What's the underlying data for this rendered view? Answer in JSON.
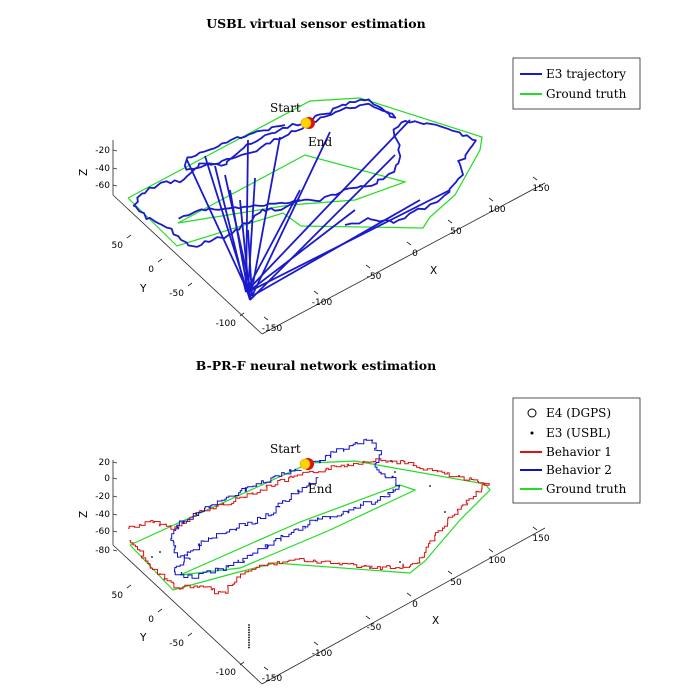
{
  "chart_data": [
    {
      "type": "line3d",
      "title": "USBL virtual sensor estimation",
      "xlabel": "X",
      "ylabel": "Y",
      "zlabel": "Z",
      "x_ticks": [
        "-150",
        "-100",
        "-50",
        "0",
        "50",
        "100",
        "150"
      ],
      "y_ticks": [
        "-100",
        "-50",
        "0",
        "50"
      ],
      "z_ticks": [
        "-20",
        "-40",
        "-60"
      ],
      "legend": [
        "E3 trajectory",
        "Ground truth"
      ],
      "annotations": [
        "Start",
        "End"
      ],
      "colors": {
        "E3 trajectory": "#1a1acc",
        "Ground truth": "#22dd22"
      }
    },
    {
      "type": "line3d",
      "title": "B-PR-F neural network estimation",
      "xlabel": "X",
      "ylabel": "Y",
      "zlabel": "Z",
      "x_ticks": [
        "-150",
        "-100",
        "-50",
        "0",
        "50",
        "100",
        "150"
      ],
      "y_ticks": [
        "-100",
        "-50",
        "0",
        "50"
      ],
      "z_ticks": [
        "20",
        "0",
        "-20",
        "-40",
        "-60",
        "-80"
      ],
      "legend": [
        "E4 (DGPS)",
        "E3 (USBL)",
        "Behavior 1",
        "Behavior 2",
        "Ground truth"
      ],
      "annotations": [
        "Start",
        "End"
      ],
      "colors": {
        "Behavior 1": "#dd1111",
        "Behavior 2": "#1111cc",
        "Ground truth": "#22dd22"
      }
    }
  ]
}
